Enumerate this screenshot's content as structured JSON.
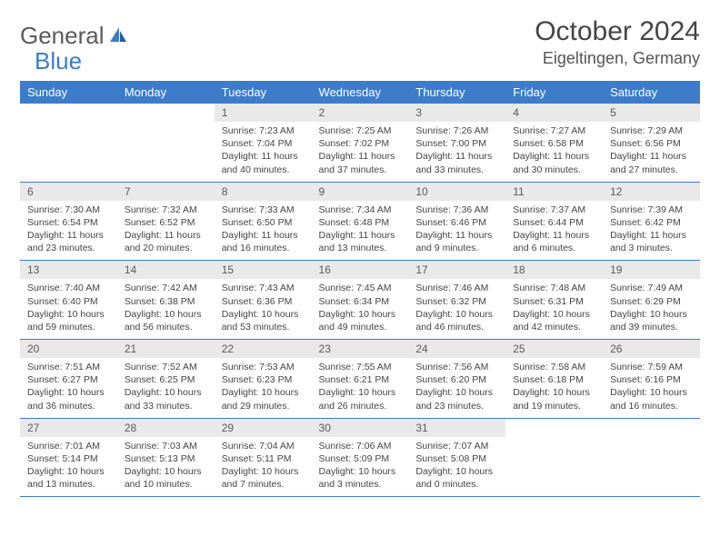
{
  "brand": {
    "part1": "General",
    "part2": "Blue"
  },
  "title": "October 2024",
  "location": "Eigeltingen, Germany",
  "colors": {
    "header_bg": "#3d7cc9",
    "header_text": "#ffffff",
    "daynum_bg": "#e9e9e9",
    "border": "#3d7cc9",
    "body_bg": "#ffffff"
  },
  "day_headers": [
    "Sunday",
    "Monday",
    "Tuesday",
    "Wednesday",
    "Thursday",
    "Friday",
    "Saturday"
  ],
  "weeks": [
    [
      null,
      null,
      {
        "n": "1",
        "sr": "Sunrise: 7:23 AM",
        "ss": "Sunset: 7:04 PM",
        "dl": "Daylight: 11 hours and 40 minutes."
      },
      {
        "n": "2",
        "sr": "Sunrise: 7:25 AM",
        "ss": "Sunset: 7:02 PM",
        "dl": "Daylight: 11 hours and 37 minutes."
      },
      {
        "n": "3",
        "sr": "Sunrise: 7:26 AM",
        "ss": "Sunset: 7:00 PM",
        "dl": "Daylight: 11 hours and 33 minutes."
      },
      {
        "n": "4",
        "sr": "Sunrise: 7:27 AM",
        "ss": "Sunset: 6:58 PM",
        "dl": "Daylight: 11 hours and 30 minutes."
      },
      {
        "n": "5",
        "sr": "Sunrise: 7:29 AM",
        "ss": "Sunset: 6:56 PM",
        "dl": "Daylight: 11 hours and 27 minutes."
      }
    ],
    [
      {
        "n": "6",
        "sr": "Sunrise: 7:30 AM",
        "ss": "Sunset: 6:54 PM",
        "dl": "Daylight: 11 hours and 23 minutes."
      },
      {
        "n": "7",
        "sr": "Sunrise: 7:32 AM",
        "ss": "Sunset: 6:52 PM",
        "dl": "Daylight: 11 hours and 20 minutes."
      },
      {
        "n": "8",
        "sr": "Sunrise: 7:33 AM",
        "ss": "Sunset: 6:50 PM",
        "dl": "Daylight: 11 hours and 16 minutes."
      },
      {
        "n": "9",
        "sr": "Sunrise: 7:34 AM",
        "ss": "Sunset: 6:48 PM",
        "dl": "Daylight: 11 hours and 13 minutes."
      },
      {
        "n": "10",
        "sr": "Sunrise: 7:36 AM",
        "ss": "Sunset: 6:46 PM",
        "dl": "Daylight: 11 hours and 9 minutes."
      },
      {
        "n": "11",
        "sr": "Sunrise: 7:37 AM",
        "ss": "Sunset: 6:44 PM",
        "dl": "Daylight: 11 hours and 6 minutes."
      },
      {
        "n": "12",
        "sr": "Sunrise: 7:39 AM",
        "ss": "Sunset: 6:42 PM",
        "dl": "Daylight: 11 hours and 3 minutes."
      }
    ],
    [
      {
        "n": "13",
        "sr": "Sunrise: 7:40 AM",
        "ss": "Sunset: 6:40 PM",
        "dl": "Daylight: 10 hours and 59 minutes."
      },
      {
        "n": "14",
        "sr": "Sunrise: 7:42 AM",
        "ss": "Sunset: 6:38 PM",
        "dl": "Daylight: 10 hours and 56 minutes."
      },
      {
        "n": "15",
        "sr": "Sunrise: 7:43 AM",
        "ss": "Sunset: 6:36 PM",
        "dl": "Daylight: 10 hours and 53 minutes."
      },
      {
        "n": "16",
        "sr": "Sunrise: 7:45 AM",
        "ss": "Sunset: 6:34 PM",
        "dl": "Daylight: 10 hours and 49 minutes."
      },
      {
        "n": "17",
        "sr": "Sunrise: 7:46 AM",
        "ss": "Sunset: 6:32 PM",
        "dl": "Daylight: 10 hours and 46 minutes."
      },
      {
        "n": "18",
        "sr": "Sunrise: 7:48 AM",
        "ss": "Sunset: 6:31 PM",
        "dl": "Daylight: 10 hours and 42 minutes."
      },
      {
        "n": "19",
        "sr": "Sunrise: 7:49 AM",
        "ss": "Sunset: 6:29 PM",
        "dl": "Daylight: 10 hours and 39 minutes."
      }
    ],
    [
      {
        "n": "20",
        "sr": "Sunrise: 7:51 AM",
        "ss": "Sunset: 6:27 PM",
        "dl": "Daylight: 10 hours and 36 minutes."
      },
      {
        "n": "21",
        "sr": "Sunrise: 7:52 AM",
        "ss": "Sunset: 6:25 PM",
        "dl": "Daylight: 10 hours and 33 minutes."
      },
      {
        "n": "22",
        "sr": "Sunrise: 7:53 AM",
        "ss": "Sunset: 6:23 PM",
        "dl": "Daylight: 10 hours and 29 minutes."
      },
      {
        "n": "23",
        "sr": "Sunrise: 7:55 AM",
        "ss": "Sunset: 6:21 PM",
        "dl": "Daylight: 10 hours and 26 minutes."
      },
      {
        "n": "24",
        "sr": "Sunrise: 7:56 AM",
        "ss": "Sunset: 6:20 PM",
        "dl": "Daylight: 10 hours and 23 minutes."
      },
      {
        "n": "25",
        "sr": "Sunrise: 7:58 AM",
        "ss": "Sunset: 6:18 PM",
        "dl": "Daylight: 10 hours and 19 minutes."
      },
      {
        "n": "26",
        "sr": "Sunrise: 7:59 AM",
        "ss": "Sunset: 6:16 PM",
        "dl": "Daylight: 10 hours and 16 minutes."
      }
    ],
    [
      {
        "n": "27",
        "sr": "Sunrise: 7:01 AM",
        "ss": "Sunset: 5:14 PM",
        "dl": "Daylight: 10 hours and 13 minutes."
      },
      {
        "n": "28",
        "sr": "Sunrise: 7:03 AM",
        "ss": "Sunset: 5:13 PM",
        "dl": "Daylight: 10 hours and 10 minutes."
      },
      {
        "n": "29",
        "sr": "Sunrise: 7:04 AM",
        "ss": "Sunset: 5:11 PM",
        "dl": "Daylight: 10 hours and 7 minutes."
      },
      {
        "n": "30",
        "sr": "Sunrise: 7:06 AM",
        "ss": "Sunset: 5:09 PM",
        "dl": "Daylight: 10 hours and 3 minutes."
      },
      {
        "n": "31",
        "sr": "Sunrise: 7:07 AM",
        "ss": "Sunset: 5:08 PM",
        "dl": "Daylight: 10 hours and 0 minutes."
      },
      null,
      null
    ]
  ]
}
